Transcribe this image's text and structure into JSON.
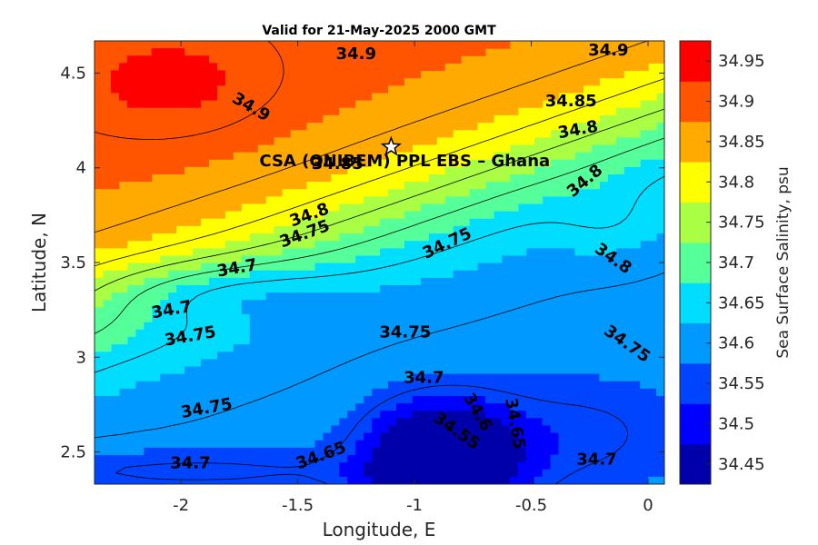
{
  "chart_data": {
    "type": "heatmap",
    "subtype": "filled-contour",
    "title": "Valid for 21-May-2025 2000 GMT",
    "xlabel": "Longitude, E",
    "ylabel": "Latitude, N",
    "xlim": [
      -2.37,
      0.07
    ],
    "ylim": [
      2.33,
      4.67
    ],
    "x_ticks": [
      -2,
      -1.5,
      -1,
      -0.5,
      0
    ],
    "x_tick_labels": [
      "-2",
      "-1.5",
      "-1",
      "-0.5",
      "0"
    ],
    "y_ticks": [
      2.5,
      3,
      3.5,
      4,
      4.5
    ],
    "y_tick_labels": [
      "2.5",
      "3",
      "3.5",
      "4",
      "4.5"
    ],
    "colorbar": {
      "label": "Sea Surface Salinity, psu",
      "levels": [
        34.425,
        34.475,
        34.525,
        34.575,
        34.625,
        34.675,
        34.725,
        34.775,
        34.825,
        34.875,
        34.925,
        34.975
      ],
      "tick_labels": [
        "34.45",
        "34.5",
        "34.55",
        "34.6",
        "34.65",
        "34.7",
        "34.75",
        "34.8",
        "34.85",
        "34.9",
        "34.95"
      ],
      "colors": [
        "#0000aa",
        "#0000ff",
        "#0044ff",
        "#0099ff",
        "#00ddff",
        "#55ff99",
        "#aaff44",
        "#ffff00",
        "#ffaa00",
        "#ff5500",
        "#ff0000"
      ]
    },
    "contour_levels": [
      34.55,
      34.6,
      34.65,
      34.7,
      34.75,
      34.8,
      34.85,
      34.9
    ],
    "contour_labels": [
      {
        "text": "34.9",
        "lon": -1.25,
        "lat": 4.6,
        "angle": 0
      },
      {
        "text": "34.9",
        "lon": -0.17,
        "lat": 4.62,
        "angle": 0
      },
      {
        "text": "34.9",
        "lon": -1.7,
        "lat": 4.32,
        "angle": 30
      },
      {
        "text": "34.85",
        "lon": -0.33,
        "lat": 4.35,
        "angle": 0
      },
      {
        "text": "34.8",
        "lon": -0.3,
        "lat": 4.2,
        "angle": -10
      },
      {
        "text": "34.8",
        "lon": -0.27,
        "lat": 3.93,
        "angle": -40
      },
      {
        "text": "34.85",
        "lon": -1.33,
        "lat": 4.02,
        "angle": 0
      },
      {
        "text": "34.8",
        "lon": -1.45,
        "lat": 3.75,
        "angle": -20
      },
      {
        "text": "34.75",
        "lon": -1.47,
        "lat": 3.65,
        "angle": -20
      },
      {
        "text": "34.75",
        "lon": -0.86,
        "lat": 3.6,
        "angle": -25
      },
      {
        "text": "34.8",
        "lon": -0.15,
        "lat": 3.52,
        "angle": 35
      },
      {
        "text": "34.7",
        "lon": -1.76,
        "lat": 3.47,
        "angle": -10
      },
      {
        "text": "34.7",
        "lon": -2.04,
        "lat": 3.25,
        "angle": -10
      },
      {
        "text": "34.75",
        "lon": -1.96,
        "lat": 3.11,
        "angle": -10
      },
      {
        "text": "34.75",
        "lon": -1.04,
        "lat": 3.13,
        "angle": 0
      },
      {
        "text": "34.75",
        "lon": -0.09,
        "lat": 3.07,
        "angle": 35
      },
      {
        "text": "34.7",
        "lon": -0.96,
        "lat": 2.89,
        "angle": 0
      },
      {
        "text": "34.75",
        "lon": -1.89,
        "lat": 2.73,
        "angle": -10
      },
      {
        "text": "34.6",
        "lon": -0.73,
        "lat": 2.71,
        "angle": 60
      },
      {
        "text": "34.65",
        "lon": -0.57,
        "lat": 2.65,
        "angle": 80
      },
      {
        "text": "34.55",
        "lon": -0.82,
        "lat": 2.61,
        "angle": 35
      },
      {
        "text": "34.7",
        "lon": -1.96,
        "lat": 2.44,
        "angle": 0
      },
      {
        "text": "34.65",
        "lon": -1.4,
        "lat": 2.48,
        "angle": -20
      },
      {
        "text": "34.7",
        "lon": -0.22,
        "lat": 2.46,
        "angle": 0
      }
    ],
    "site": {
      "name": "CSA (ONIBEM) PPL EBS  – Ghana",
      "lon": -1.1,
      "lat": 4.11,
      "marker": "star"
    },
    "grid": false,
    "legend": "colorbar-right"
  }
}
